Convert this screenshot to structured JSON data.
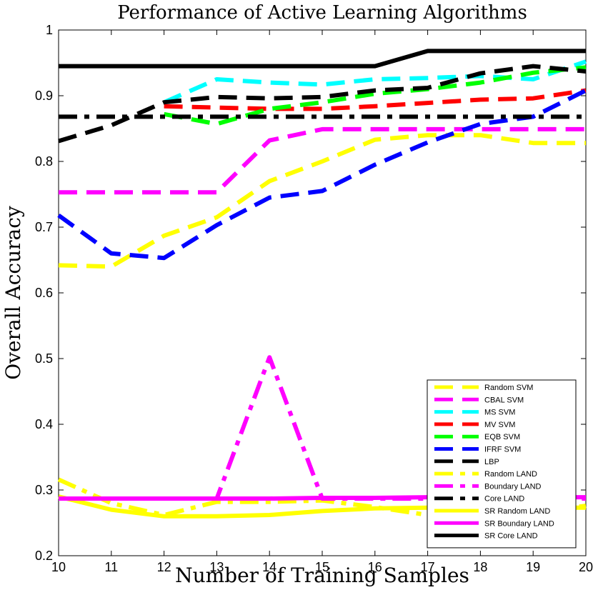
{
  "chart_data": {
    "type": "line",
    "title": "Performance of Active Learning Algorithms",
    "xlabel": "Number of Training Samples",
    "ylabel": "Overall Accuracy",
    "xlim": [
      10,
      20
    ],
    "ylim": [
      0.2,
      1.0
    ],
    "xticks": [
      "10",
      "11",
      "12",
      "13",
      "14",
      "15",
      "16",
      "17",
      "18",
      "19",
      "20"
    ],
    "yticks": [
      "0.2",
      "0.3",
      "0.4",
      "0.5",
      "0.6",
      "0.7",
      "0.8",
      "0.9",
      "1"
    ],
    "legend_position": "bottom-right",
    "x": [
      10,
      11,
      12,
      13,
      14,
      15,
      16,
      17,
      18,
      19,
      20
    ],
    "series": [
      {
        "name": "Random SVM",
        "color": "#ffff00",
        "style": "dashed",
        "values": [
          0.642,
          0.64,
          0.687,
          0.715,
          0.77,
          0.8,
          0.833,
          0.84,
          0.84,
          0.828,
          0.828
        ]
      },
      {
        "name": "CBAL SVM",
        "color": "#ff00ff",
        "style": "dashed",
        "values": [
          0.753,
          0.753,
          0.753,
          0.753,
          0.832,
          0.849,
          0.849,
          0.849,
          0.849,
          0.849,
          0.849
        ]
      },
      {
        "name": "MS SVM",
        "color": "#00ffff",
        "style": "dashed",
        "values": [
          null,
          null,
          0.89,
          0.925,
          0.92,
          0.917,
          0.925,
          0.927,
          0.93,
          0.925,
          0.952
        ]
      },
      {
        "name": "MV SVM",
        "color": "#ff0000",
        "style": "dashed",
        "values": [
          null,
          null,
          0.884,
          0.882,
          0.88,
          0.88,
          0.884,
          0.889,
          0.894,
          0.896,
          0.908
        ]
      },
      {
        "name": "EQB SVM",
        "color": "#00ff00",
        "style": "dashed",
        "values": [
          null,
          null,
          0.872,
          0.857,
          0.88,
          0.89,
          0.903,
          0.91,
          0.92,
          0.935,
          0.943
        ]
      },
      {
        "name": "IFRF SVM",
        "color": "#0000ff",
        "style": "dashed",
        "values": [
          0.718,
          0.66,
          0.653,
          0.703,
          0.745,
          0.755,
          0.795,
          0.829,
          0.857,
          0.868,
          0.908
        ]
      },
      {
        "name": "LBP",
        "color": "#000000",
        "style": "dashed",
        "values": [
          0.831,
          0.855,
          0.89,
          0.898,
          0.896,
          0.898,
          0.908,
          0.912,
          0.934,
          0.945,
          0.937
        ]
      },
      {
        "name": "Random LAND",
        "color": "#ffff00",
        "style": "dashdot",
        "values": [
          0.316,
          0.28,
          0.262,
          0.282,
          0.282,
          0.284,
          0.274,
          0.262,
          0.262,
          0.266,
          0.276
        ]
      },
      {
        "name": "Boundary LAND",
        "color": "#ff00ff",
        "style": "dashdot",
        "values": [
          0.287,
          0.287,
          0.287,
          0.287,
          0.502,
          0.287,
          0.287,
          0.287,
          0.287,
          0.287,
          0.287
        ]
      },
      {
        "name": "Core LAND",
        "color": "#000000",
        "style": "dashdot",
        "values": [
          0.868,
          0.868,
          0.868,
          0.868,
          0.868,
          0.868,
          0.868,
          0.868,
          0.868,
          0.868,
          0.868
        ]
      },
      {
        "name": "SR Random LAND",
        "color": "#ffff00",
        "style": "solid",
        "values": [
          0.29,
          0.27,
          0.26,
          0.26,
          0.262,
          0.268,
          0.272,
          0.273,
          0.273,
          0.273,
          0.273
        ]
      },
      {
        "name": "SR Boundary LAND",
        "color": "#ff00ff",
        "style": "solid",
        "values": [
          0.287,
          0.287,
          0.287,
          0.287,
          0.287,
          0.288,
          0.288,
          0.289,
          0.289,
          0.289,
          0.289
        ]
      },
      {
        "name": "SR Core LAND",
        "color": "#000000",
        "style": "solid",
        "values": [
          0.945,
          0.945,
          0.945,
          0.945,
          0.945,
          0.945,
          0.945,
          0.968,
          0.968,
          0.968,
          0.968
        ]
      }
    ]
  }
}
